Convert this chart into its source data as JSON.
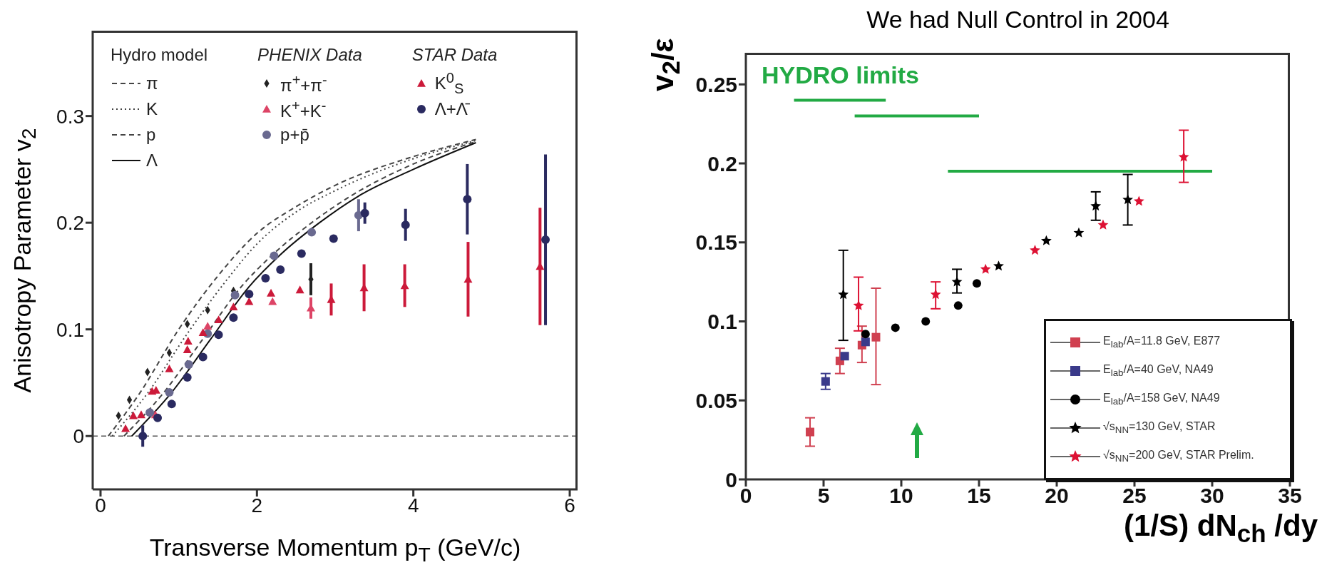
{
  "chart_data": [
    {
      "type": "scatter",
      "xlabel": "Transverse Momentum p$_{T}$ (GeV/c)",
      "ylabel": "Anisotropy Parameter v$_{2}$",
      "annotations": [
        "Hydro model",
        "PHENIX Data",
        "STAR Data"
      ],
      "xlim": [
        -0.1,
        6.1
      ],
      "ylim": [
        -0.05,
        0.38
      ],
      "xticks": [
        0,
        2,
        4,
        6
      ],
      "yticks": [
        0,
        0.1,
        0.2,
        0.3
      ],
      "legend": "top",
      "ref_lines": [
        {
          "axis": "y",
          "value": 0,
          "line_style": "dashed"
        }
      ],
      "series": [
        {
          "type": "line",
          "name": "π",
          "color": "#444444",
          "line_style": "dashed",
          "x": [
            0.1,
            0.5,
            1,
            1.5,
            2,
            2.5,
            3,
            4,
            4.8
          ],
          "values": [
            0,
            0.04,
            0.1,
            0.15,
            0.19,
            0.215,
            0.235,
            0.262,
            0.278
          ]
        },
        {
          "type": "line",
          "name": "K",
          "color": "#444444",
          "line_style": "dotted",
          "x": [
            0.15,
            0.6,
            1.1,
            1.6,
            2,
            2.5,
            3,
            4,
            4.8
          ],
          "values": [
            0,
            0.04,
            0.095,
            0.145,
            0.18,
            0.21,
            0.23,
            0.26,
            0.277
          ]
        },
        {
          "type": "line",
          "name": "p",
          "color": "#444444",
          "line_style": "dashed",
          "x": [
            0.3,
            0.8,
            1.3,
            1.8,
            2.2,
            2.7,
            3.2,
            4,
            4.8
          ],
          "values": [
            0,
            0.04,
            0.09,
            0.14,
            0.17,
            0.2,
            0.225,
            0.255,
            0.276
          ]
        },
        {
          "type": "line",
          "name": "Λ",
          "color": "#111111",
          "line_style": "solid",
          "x": [
            0.4,
            0.9,
            1.4,
            1.9,
            2.3,
            2.8,
            3.3,
            4,
            4.8
          ],
          "values": [
            0,
            0.04,
            0.09,
            0.14,
            0.17,
            0.2,
            0.225,
            0.25,
            0.275
          ]
        },
        {
          "type": "scatter",
          "name": "π$^{+}$+π$^{-}$",
          "color": "#222222",
          "marker": "diamond",
          "x": [
            0.23,
            0.37,
            0.6,
            0.88,
            1.11,
            1.37,
            1.7,
            2.69
          ],
          "values": [
            0.019,
            0.034,
            0.06,
            0.078,
            0.105,
            0.118,
            0.136,
            0.147
          ],
          "errors": [
            null,
            null,
            null,
            null,
            null,
            null,
            null,
            0.015
          ]
        },
        {
          "type": "scatter",
          "name": "K$^{+}$+K$^{-}$",
          "color": "#dd4466",
          "marker": "triangle",
          "x": [
            0.7,
            1.37,
            2.2,
            2.69
          ],
          "values": [
            0.02,
            0.103,
            0.126,
            0.12
          ],
          "errors": [
            null,
            null,
            null,
            0.01
          ]
        },
        {
          "type": "scatter",
          "name": "p+p̄",
          "color": "#6a6a90",
          "marker": "circle",
          "x": [
            0.63,
            0.88,
            1.13,
            1.37,
            1.72,
            2.22,
            2.7,
            3.3
          ],
          "values": [
            0.022,
            0.041,
            0.067,
            0.096,
            0.132,
            0.169,
            0.191,
            0.207
          ],
          "errors": [
            null,
            null,
            null,
            null,
            null,
            null,
            null,
            0.015
          ]
        },
        {
          "type": "scatter",
          "name": "K$^{0}$$_{S}$",
          "color": "#cc1a3a",
          "marker": "triangle",
          "x": [
            0.32,
            0.42,
            0.52,
            0.66,
            0.71,
            0.88,
            1.11,
            1.12,
            1.31,
            1.51,
            1.7,
            1.9,
            2.18,
            2.55,
            2.95,
            3.37,
            3.89,
            4.7,
            5.62
          ],
          "values": [
            0.007,
            0.019,
            0.02,
            0.042,
            0.043,
            0.063,
            0.081,
            0.089,
            0.097,
            0.109,
            0.121,
            0.126,
            0.134,
            0.137,
            0.128,
            0.139,
            0.141,
            0.147,
            0.159
          ],
          "errors": [
            null,
            null,
            null,
            null,
            null,
            null,
            null,
            null,
            null,
            null,
            null,
            null,
            null,
            null,
            0.015,
            0.022,
            0.02,
            0.035,
            0.055
          ]
        },
        {
          "type": "scatter",
          "name": "Λ+Λ̄",
          "color": "#2a2a60",
          "marker": "circle",
          "x": [
            0.54,
            0.73,
            0.91,
            1.11,
            1.31,
            1.51,
            1.7,
            1.9,
            2.11,
            2.3,
            2.57,
            2.98,
            3.38,
            3.9,
            4.69,
            5.69
          ],
          "values": [
            0,
            0.017,
            0.03,
            0.055,
            0.074,
            0.095,
            0.111,
            0.133,
            0.148,
            0.156,
            0.171,
            0.185,
            0.209,
            0.198,
            0.222,
            0.184
          ],
          "errors": [
            0.01,
            null,
            null,
            null,
            null,
            null,
            null,
            null,
            null,
            null,
            null,
            null,
            0.01,
            0.015,
            0.033,
            0.08
          ]
        }
      ]
    },
    {
      "type": "scatter",
      "title": "We had Null Control in 2004",
      "xlabel": "(1/S) dN$_{ch}$ /dy",
      "ylabel": "v$_{2}$/ε",
      "annotations": [
        "HYDRO limits"
      ],
      "xlim": [
        0,
        35
      ],
      "ylim": [
        0,
        0.27
      ],
      "xticks": [
        0,
        5,
        10,
        15,
        20,
        25,
        30,
        35
      ],
      "yticks": [
        0,
        0.05,
        0.1,
        0.15,
        0.2,
        0.25
      ],
      "legend": "bottom right",
      "series": [
        {
          "type": "line",
          "color": "#22aa44",
          "line_style": "solid",
          "x": [
            3.1,
            9.0
          ],
          "values": [
            0.24,
            0.24
          ]
        },
        {
          "type": "line",
          "color": "#22aa44",
          "line_style": "solid",
          "x": [
            7.0,
            15.0
          ],
          "values": [
            0.23,
            0.23
          ]
        },
        {
          "type": "line",
          "color": "#22aa44",
          "line_style": "solid",
          "x": [
            13.0,
            30.0
          ],
          "values": [
            0.195,
            0.195
          ]
        },
        {
          "type": "scatter",
          "name": "E$_{lab}$/A=11.8 GeV, E877",
          "color": "#d04050",
          "marker": "square",
          "x": [
            4.13,
            6.05,
            7.47,
            8.37
          ],
          "values": [
            0.03,
            0.075,
            0.085,
            0.09
          ],
          "errors": [
            [
              0.021,
              0.039
            ],
            0.008,
            [
              0.074,
              0.097
            ],
            [
              0.06,
              0.121
            ]
          ]
        },
        {
          "type": "scatter",
          "name": "E$_{lab}$/A=40 GeV, NA49",
          "color": "#3a3a8a",
          "marker": "square",
          "x": [
            5.13,
            6.36,
            7.7
          ],
          "values": [
            0.062,
            0.078,
            0.087
          ],
          "errors": [
            0.005,
            null,
            null
          ]
        },
        {
          "type": "scatter",
          "name": "E$_{lab}$/A=158 GeV, NA49",
          "color": "#000000",
          "marker": "circle",
          "x": [
            7.7,
            9.62,
            11.57,
            13.66,
            14.86
          ],
          "values": [
            0.092,
            0.096,
            0.1,
            0.11,
            0.124
          ]
        },
        {
          "type": "scatter",
          "name": "√s$_{NN}$=130 GeV, STAR",
          "color": "#000000",
          "marker": "star",
          "x": [
            6.27,
            13.58,
            16.26,
            19.33,
            21.42,
            22.51,
            24.57
          ],
          "values": [
            0.117,
            0.125,
            0.135,
            0.151,
            0.156,
            0.173,
            0.177
          ],
          "errors": [
            [
              0.088,
              0.145
            ],
            [
              0.118,
              0.133
            ],
            null,
            null,
            null,
            [
              0.164,
              0.182
            ],
            [
              0.161,
              0.193
            ]
          ]
        },
        {
          "type": "scatter",
          "name": "√s$_{NN}$=200 GeV, STAR Prelim.",
          "color": "#dd1133",
          "marker": "star",
          "x": [
            7.25,
            12.21,
            15.42,
            18.6,
            22.98,
            25.29,
            28.17
          ],
          "values": [
            0.11,
            0.117,
            0.133,
            0.145,
            0.161,
            0.176,
            0.204
          ],
          "errors": [
            [
              0.094,
              0.128
            ],
            [
              0.108,
              0.125
            ],
            null,
            null,
            null,
            null,
            [
              0.188,
              0.221
            ]
          ]
        }
      ]
    }
  ]
}
